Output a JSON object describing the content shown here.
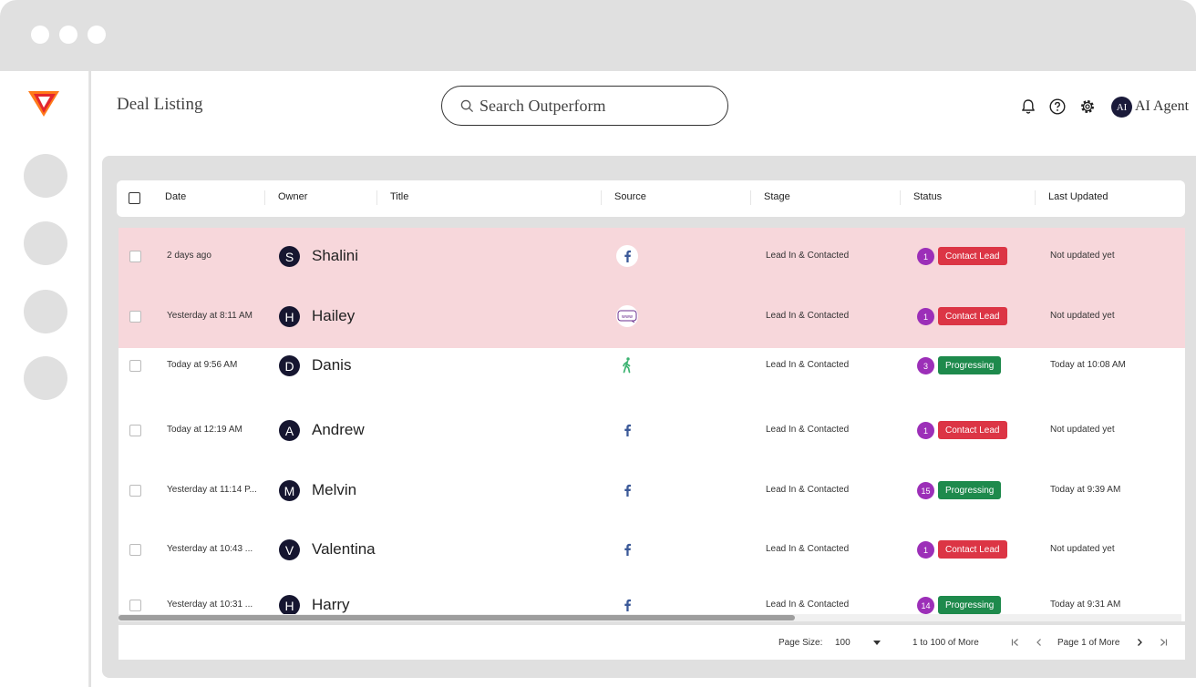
{
  "header": {
    "page_title": "Deal Listing",
    "search_placeholder": "Search Outperform",
    "avatar_initials": "AI",
    "agent_name": "AI Agent"
  },
  "table": {
    "columns": [
      "Date",
      "Owner",
      "Title",
      "Source",
      "Stage",
      "Status",
      "Last Updated"
    ],
    "rows": [
      {
        "date": "2 days ago",
        "initial": "S",
        "owner": "Shalini",
        "source": "facebook-circle",
        "stage": "Lead In & Contacted",
        "count": "1",
        "status": "Contact Lead",
        "updated": "Not updated yet",
        "highlight": true
      },
      {
        "date": "Yesterday at 8:11 AM",
        "initial": "H",
        "owner": "Hailey",
        "source": "web",
        "stage": "Lead In & Contacted",
        "count": "1",
        "status": "Contact Lead",
        "updated": "Not updated yet",
        "highlight": true
      },
      {
        "date": "Today at 9:56 AM",
        "initial": "D",
        "owner": "Danis",
        "source": "walk-in",
        "stage": "Lead In & Contacted",
        "count": "3",
        "status": "Progressing",
        "updated": "Today at 10:08 AM",
        "highlight": false
      },
      {
        "date": "Today at 12:19 AM",
        "initial": "A",
        "owner": "Andrew",
        "source": "facebook",
        "stage": "Lead In & Contacted",
        "count": "1",
        "status": "Contact Lead",
        "updated": "Not updated yet",
        "highlight": false
      },
      {
        "date": "Yesterday at 11:14 P...",
        "initial": "M",
        "owner": "Melvin",
        "source": "facebook",
        "stage": "Lead In & Contacted",
        "count": "15",
        "status": "Progressing",
        "updated": "Today at 9:39 AM",
        "highlight": false
      },
      {
        "date": "Yesterday at 10:43 ...",
        "initial": "V",
        "owner": "Valentina",
        "source": "facebook",
        "stage": "Lead In & Contacted",
        "count": "1",
        "status": "Contact Lead",
        "updated": "Not updated yet",
        "highlight": false
      },
      {
        "date": "Yesterday at 10:31 ...",
        "initial": "H",
        "owner": "Harry",
        "source": "facebook",
        "stage": "Lead In & Contacted",
        "count": "14",
        "status": "Progressing",
        "updated": "Today at 9:31 AM",
        "highlight": false
      }
    ]
  },
  "pagination": {
    "page_size_label": "Page Size:",
    "page_size": "100",
    "range": "1 to 100 of More",
    "page": "Page 1 of More"
  },
  "colors": {
    "contact_lead": "#dc3545",
    "progressing": "#1e8a4c",
    "count_badge": "#9c2fb8",
    "highlight_row": "#f7d7db",
    "facebook": "#3b5998",
    "walk_in": "#3cb371"
  }
}
